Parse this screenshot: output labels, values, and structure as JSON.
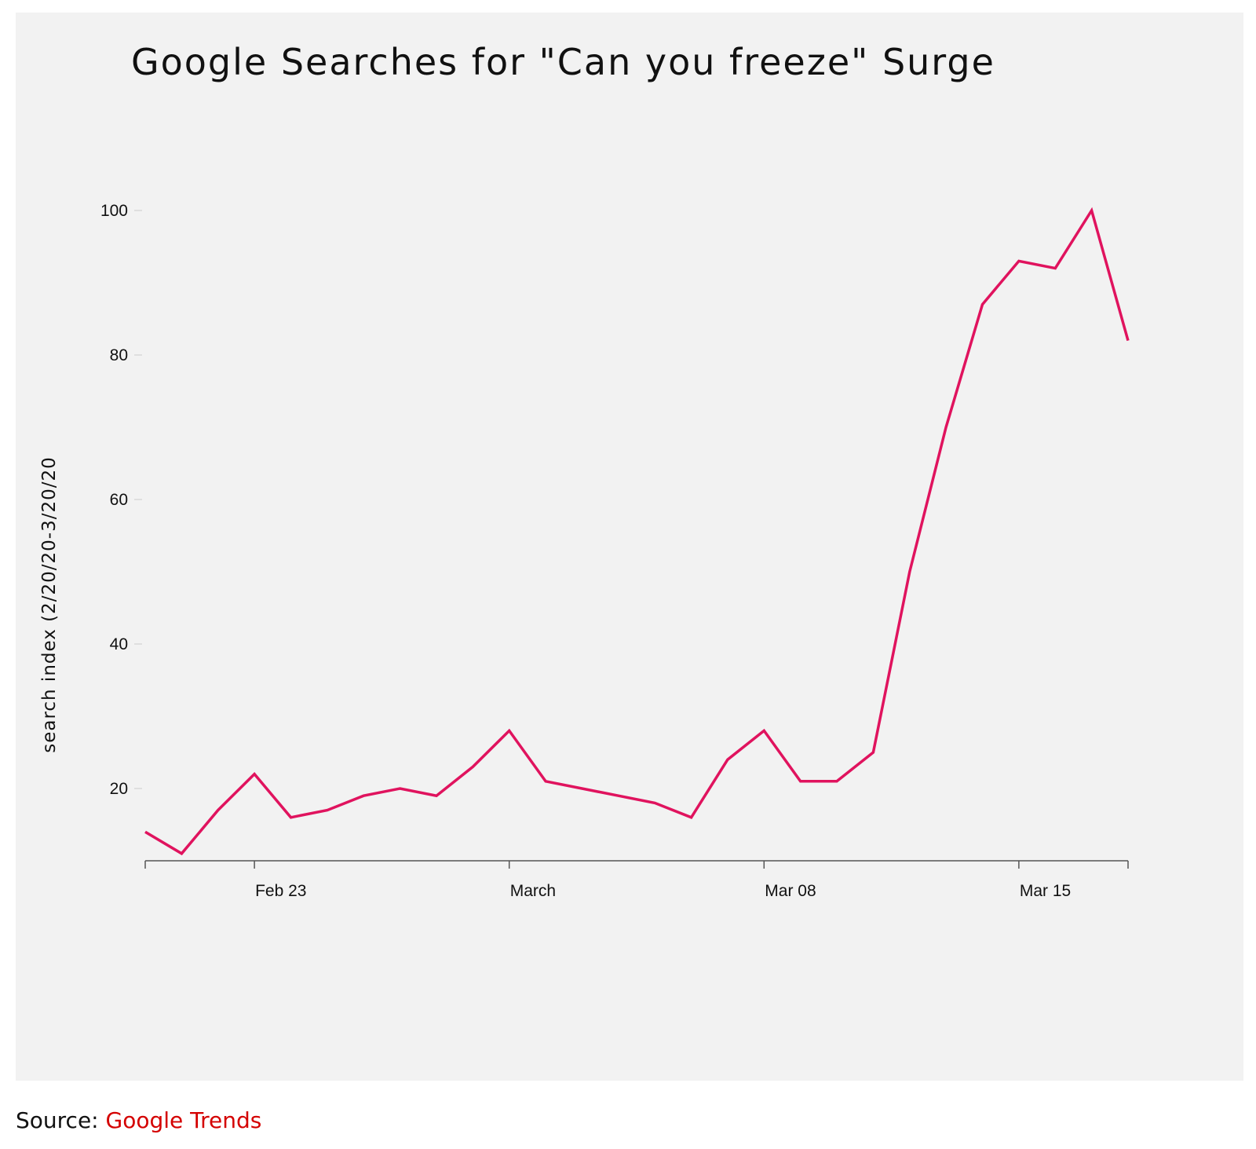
{
  "page": {
    "source_label": "Source: ",
    "source_link": "Google Trends"
  },
  "chart_data": {
    "type": "line",
    "title": "Google Searches for \"Can you freeze\" Surge",
    "xlabel": "",
    "ylabel": "search index (2/20/20-3/20/20",
    "x": [
      "2020-02-20",
      "2020-02-21",
      "2020-02-22",
      "2020-02-23",
      "2020-02-24",
      "2020-02-25",
      "2020-02-26",
      "2020-02-27",
      "2020-02-28",
      "2020-02-29",
      "2020-03-01",
      "2020-03-02",
      "2020-03-03",
      "2020-03-04",
      "2020-03-05",
      "2020-03-06",
      "2020-03-07",
      "2020-03-08",
      "2020-03-09",
      "2020-03-10",
      "2020-03-11",
      "2020-03-12",
      "2020-03-13",
      "2020-03-14",
      "2020-03-15",
      "2020-03-16",
      "2020-03-17",
      "2020-03-18"
    ],
    "series": [
      {
        "values": [
          14,
          11,
          17,
          22,
          16,
          17,
          19,
          20,
          19,
          23,
          28,
          21,
          20,
          19,
          18,
          16,
          24,
          28,
          21,
          21,
          25,
          50,
          70,
          87,
          93,
          92,
          100,
          82
        ]
      }
    ],
    "x_ticks": [
      {
        "date": "2020-02-23",
        "label": "Feb 23"
      },
      {
        "date": "2020-03-01",
        "label": "March"
      },
      {
        "date": "2020-03-08",
        "label": "Mar 08"
      },
      {
        "date": "2020-03-15",
        "label": "Mar 15"
      }
    ],
    "y_ticks": [
      20,
      40,
      60,
      80,
      100
    ],
    "ylim": [
      10,
      100
    ],
    "xlim": [
      "2020-02-20",
      "2020-03-18"
    ],
    "grid": false,
    "legend": "none",
    "line_color": "#e0135e"
  }
}
